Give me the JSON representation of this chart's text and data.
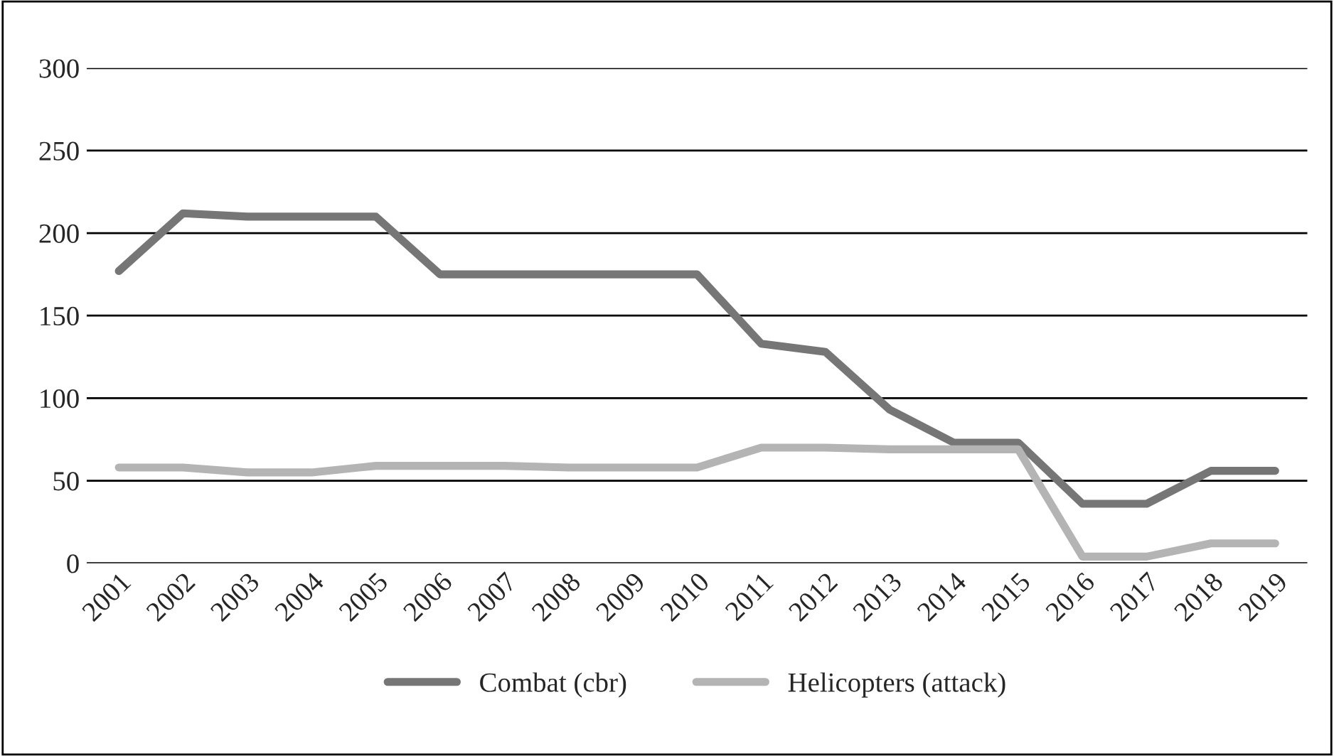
{
  "chart_data": {
    "type": "line",
    "categories": [
      "2001",
      "2002",
      "2003",
      "2004",
      "2005",
      "2006",
      "2007",
      "2008",
      "2009",
      "2010",
      "2011",
      "2012",
      "2013",
      "2014",
      "2015",
      "2016",
      "2017",
      "2018",
      "2019"
    ],
    "series": [
      {
        "name": "Combat (cbr)",
        "color": "#767676",
        "values": [
          177,
          212,
          210,
          210,
          210,
          175,
          175,
          175,
          175,
          175,
          133,
          128,
          93,
          73,
          73,
          36,
          36,
          56,
          56
        ]
      },
      {
        "name": "Helicopters (attack)",
        "color": "#b4b4b4",
        "values": [
          58,
          58,
          55,
          55,
          59,
          59,
          59,
          58,
          58,
          58,
          70,
          70,
          69,
          69,
          69,
          4,
          4,
          12,
          12
        ]
      }
    ],
    "ylim": [
      0,
      300
    ],
    "yticks": [
      0,
      50,
      100,
      150,
      200,
      250,
      300
    ],
    "grid": "y",
    "legend": "bottom",
    "line_style": "solid",
    "marker": "none"
  }
}
